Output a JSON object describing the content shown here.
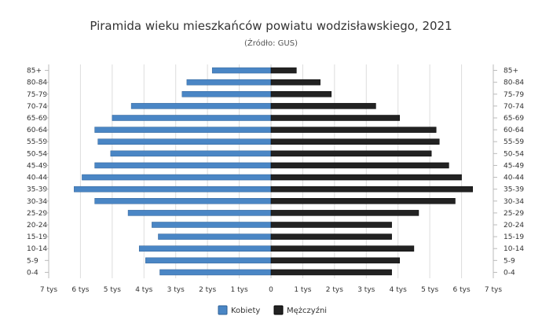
{
  "chart_data": {
    "type": "bar",
    "title": "Piramida wieku mieszkańców powiatu wodzisławskiego, 2021",
    "subtitle": "(Źródło: GUS)",
    "categories": [
      "85+",
      "80-84",
      "75-79",
      "70-74",
      "65-69",
      "60-64",
      "55-59",
      "50-54",
      "45-49",
      "40-44",
      "35-39",
      "30-34",
      "25-29",
      "20-24",
      "15-19",
      "10-14",
      "5-9",
      "0-4"
    ],
    "series": [
      {
        "name": "Kobiety",
        "color": "#4a86c5",
        "values": [
          1850,
          2650,
          2800,
          4400,
          5000,
          5550,
          5450,
          5050,
          5550,
          5950,
          6200,
          5550,
          4500,
          3750,
          3550,
          4150,
          3950,
          3500
        ]
      },
      {
        "name": "Mężczyźni",
        "color": "#222222",
        "values": [
          800,
          1550,
          1900,
          3300,
          4050,
          5200,
          5300,
          5050,
          5600,
          6000,
          6350,
          5800,
          4650,
          3800,
          3800,
          4500,
          4050,
          3800
        ]
      }
    ],
    "xlim": [
      -7000,
      7000
    ],
    "x_ticks": [
      {
        "value": -7000,
        "label": "7 tys"
      },
      {
        "value": -6000,
        "label": "6 tys"
      },
      {
        "value": -5000,
        "label": "5 tys"
      },
      {
        "value": -4000,
        "label": "4 tys"
      },
      {
        "value": -3000,
        "label": "3 tys"
      },
      {
        "value": -2000,
        "label": "2 tys"
      },
      {
        "value": -1000,
        "label": "1 tys"
      },
      {
        "value": 0,
        "label": "0"
      },
      {
        "value": 1000,
        "label": "1 tys"
      },
      {
        "value": 2000,
        "label": "2 tys"
      },
      {
        "value": 3000,
        "label": "3 tys"
      },
      {
        "value": 4000,
        "label": "4 tys"
      },
      {
        "value": 5000,
        "label": "5 tys"
      },
      {
        "value": 6000,
        "label": "6 tys"
      },
      {
        "value": 7000,
        "label": "7 tys"
      }
    ],
    "grid": true,
    "legend_position": "bottom-center"
  }
}
